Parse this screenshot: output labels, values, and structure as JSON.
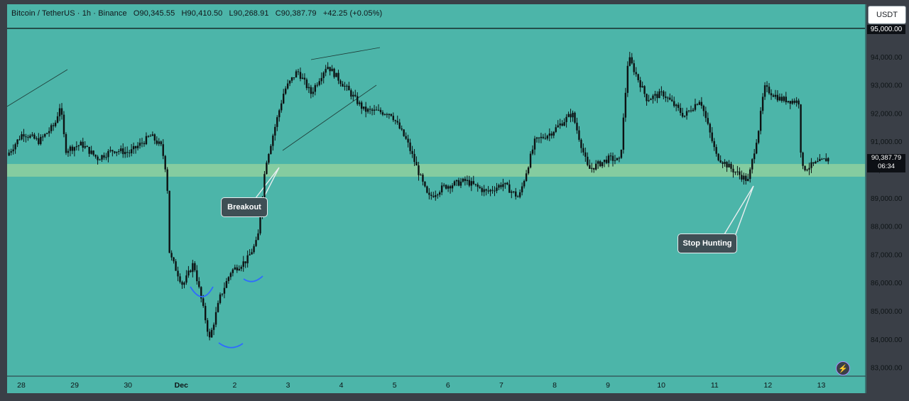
{
  "header": {
    "symbol": "Bitcoin / TetherUS · 1h · Binance",
    "open": "O90,345.55",
    "high": "H90,410.50",
    "low": "L90,268.91",
    "close": "C90,387.79",
    "change": "+42.25 (+0.05%)"
  },
  "currency_button": "USDT",
  "price_tag": {
    "price": "90,387.79",
    "countdown": "06:34"
  },
  "top_level_tag": "95,000.00",
  "annotations": {
    "breakout": "Breakout",
    "stop_hunting": "Stop Hunting"
  },
  "colors": {
    "background": "#4cb5a9",
    "zone": "#8fd09f",
    "candle": "#0d1213",
    "swing_marks": "#2f6bff"
  },
  "chart_data": {
    "type": "candlestick",
    "symbol": "BTCUSDT",
    "interval": "1h",
    "ylim": [
      82700,
      95300
    ],
    "y_ticks": [
      "83,000.00",
      "84,000.00",
      "85,000.00",
      "86,000.00",
      "87,000.00",
      "88,000.00",
      "89,000.00",
      "90,000.00",
      "91,000.00",
      "92,000.00",
      "93,000.00",
      "94,000.00",
      "95,000.00"
    ],
    "x_ticks": [
      "28",
      "29",
      "30",
      "Dec",
      "2",
      "3",
      "4",
      "5",
      "6",
      "7",
      "8",
      "9",
      "10",
      "11",
      "12",
      "13"
    ],
    "resistance_line": 95000,
    "support_zone": [
      89750,
      90200
    ],
    "last_price": 90387.79,
    "close_path": [
      {
        "t": 0,
        "p": 90500
      },
      {
        "t": 0.3,
        "p": 91300
      },
      {
        "t": 0.6,
        "p": 91000
      },
      {
        "t": 0.9,
        "p": 91600
      },
      {
        "t": 1.0,
        "p": 92300
      },
      {
        "t": 1.1,
        "p": 90700
      },
      {
        "t": 1.4,
        "p": 90900
      },
      {
        "t": 1.7,
        "p": 90400
      },
      {
        "t": 2.0,
        "p": 90700
      },
      {
        "t": 2.3,
        "p": 90600
      },
      {
        "t": 2.7,
        "p": 91200
      },
      {
        "t": 2.9,
        "p": 90800
      },
      {
        "t": 3.0,
        "p": 89800
      },
      {
        "t": 3.05,
        "p": 87000
      },
      {
        "t": 3.3,
        "p": 85900
      },
      {
        "t": 3.5,
        "p": 86700
      },
      {
        "t": 3.8,
        "p": 84000
      },
      {
        "t": 4.0,
        "p": 85500
      },
      {
        "t": 4.2,
        "p": 86400
      },
      {
        "t": 4.5,
        "p": 86800
      },
      {
        "t": 4.7,
        "p": 87500
      },
      {
        "t": 4.85,
        "p": 90200
      },
      {
        "t": 5.2,
        "p": 92800
      },
      {
        "t": 5.45,
        "p": 93500
      },
      {
        "t": 5.7,
        "p": 92700
      },
      {
        "t": 6.0,
        "p": 93700
      },
      {
        "t": 6.4,
        "p": 92800
      },
      {
        "t": 6.7,
        "p": 92100
      },
      {
        "t": 7.2,
        "p": 92000
      },
      {
        "t": 7.5,
        "p": 91000
      },
      {
        "t": 7.9,
        "p": 89000
      },
      {
        "t": 8.2,
        "p": 89400
      },
      {
        "t": 8.6,
        "p": 89600
      },
      {
        "t": 9.0,
        "p": 89200
      },
      {
        "t": 9.3,
        "p": 89500
      },
      {
        "t": 9.6,
        "p": 89000
      },
      {
        "t": 9.9,
        "p": 91000
      },
      {
        "t": 10.2,
        "p": 91300
      },
      {
        "t": 10.6,
        "p": 92000
      },
      {
        "t": 10.9,
        "p": 90000
      },
      {
        "t": 11.3,
        "p": 90400
      },
      {
        "t": 11.5,
        "p": 90300
      },
      {
        "t": 11.65,
        "p": 94000
      },
      {
        "t": 12.0,
        "p": 92500
      },
      {
        "t": 12.3,
        "p": 92700
      },
      {
        "t": 12.7,
        "p": 91900
      },
      {
        "t": 13.0,
        "p": 92500
      },
      {
        "t": 13.3,
        "p": 90500
      },
      {
        "t": 13.6,
        "p": 90000
      },
      {
        "t": 13.9,
        "p": 89600
      },
      {
        "t": 14.1,
        "p": 91500
      },
      {
        "t": 14.2,
        "p": 92900
      },
      {
        "t": 14.5,
        "p": 92500
      },
      {
        "t": 14.85,
        "p": 92400
      },
      {
        "t": 14.9,
        "p": 90000
      },
      {
        "t": 15.4,
        "p": 90390
      }
    ]
  }
}
